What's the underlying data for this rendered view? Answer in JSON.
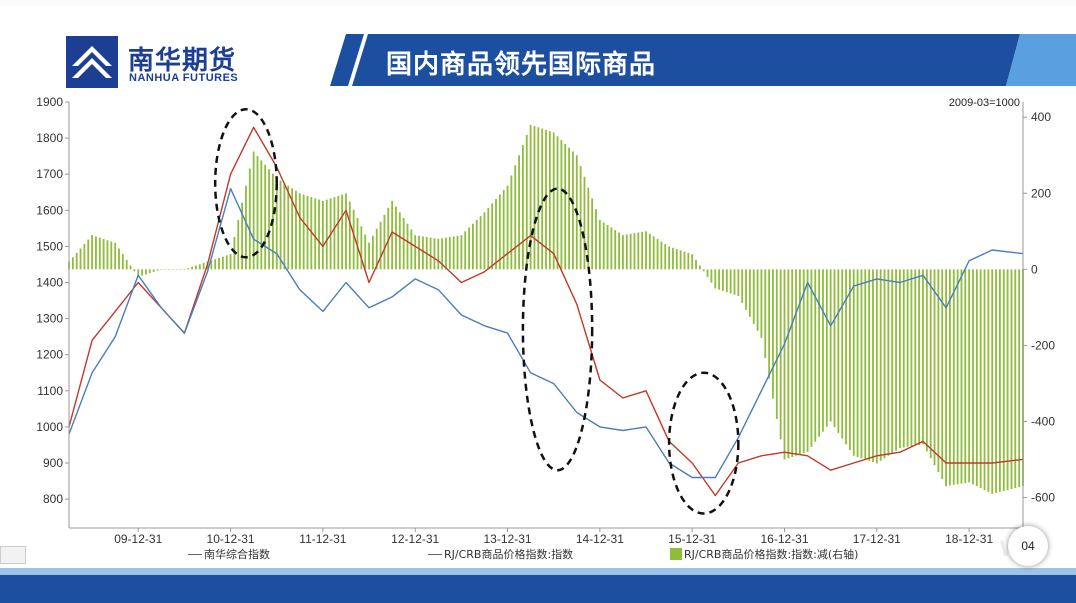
{
  "brand": {
    "name_cn": "南华期货",
    "name_en": "NANHUA FUTURES",
    "logo_color": "#1c3f94"
  },
  "slide": {
    "title": "国内商品领先国际商品",
    "page_number": "04",
    "banner_color": "#1c4fa0",
    "banner_accent": "#5aa0e0"
  },
  "chart_data": {
    "type": "line",
    "annotation": "2009-03=1000",
    "x_tick_labels": [
      "09-12-31",
      "10-12-31",
      "11-12-31",
      "12-12-31",
      "13-12-31",
      "14-12-31",
      "15-12-31",
      "16-12-31",
      "17-12-31",
      "18-12-31"
    ],
    "left_axis": {
      "ticks": [
        800,
        900,
        1000,
        1100,
        1200,
        1300,
        1400,
        1500,
        1600,
        1700,
        1800,
        1900
      ],
      "ylim": [
        720,
        1900
      ]
    },
    "right_axis": {
      "ticks": [
        400,
        200,
        0,
        -200,
        -400,
        -600
      ],
      "ylim": [
        -680,
        440
      ]
    },
    "x_range": [
      "2009-03",
      "2019-07"
    ],
    "legend": [
      {
        "label": "南华综合指数",
        "color": "#4a7ebb"
      },
      {
        "label": "RJ/CRB商品价格指数:指数",
        "color": "#c0392b"
      },
      {
        "label": "RJ/CRB商品价格指数:指数:减(右轴)",
        "color": "#8fbc3a"
      }
    ],
    "series": [
      {
        "name": "南华综合指数",
        "color": "#4a7ebb",
        "axis": "left",
        "x": [
          "2009-03",
          "2009-06",
          "2009-09",
          "2009-12",
          "2010-03",
          "2010-06",
          "2010-09",
          "2010-12",
          "2011-03",
          "2011-06",
          "2011-09",
          "2011-12",
          "2012-03",
          "2012-06",
          "2012-09",
          "2012-12",
          "2013-03",
          "2013-06",
          "2013-09",
          "2013-12",
          "2014-03",
          "2014-06",
          "2014-09",
          "2014-12",
          "2015-03",
          "2015-06",
          "2015-09",
          "2015-12",
          "2016-03",
          "2016-06",
          "2016-09",
          "2016-12",
          "2017-03",
          "2017-06",
          "2017-09",
          "2017-12",
          "2018-03",
          "2018-06",
          "2018-09",
          "2018-12",
          "2019-03",
          "2019-07"
        ],
        "values": [
          980,
          1150,
          1250,
          1420,
          1330,
          1260,
          1430,
          1660,
          1520,
          1480,
          1380,
          1320,
          1400,
          1330,
          1360,
          1410,
          1380,
          1310,
          1280,
          1260,
          1150,
          1120,
          1040,
          1000,
          990,
          1000,
          900,
          860,
          860,
          970,
          1100,
          1230,
          1400,
          1280,
          1390,
          1410,
          1400,
          1420,
          1330,
          1460,
          1490,
          1480
        ]
      },
      {
        "name": "RJ/CRB商品价格指数:指数",
        "color": "#c0392b",
        "axis": "left",
        "x": [
          "2009-03",
          "2009-06",
          "2009-09",
          "2009-12",
          "2010-03",
          "2010-06",
          "2010-09",
          "2010-12",
          "2011-03",
          "2011-06",
          "2011-09",
          "2011-12",
          "2012-03",
          "2012-06",
          "2012-09",
          "2012-12",
          "2013-03",
          "2013-06",
          "2013-09",
          "2013-12",
          "2014-03",
          "2014-06",
          "2014-09",
          "2014-12",
          "2015-03",
          "2015-06",
          "2015-09",
          "2015-12",
          "2016-03",
          "2016-06",
          "2016-09",
          "2016-12",
          "2017-03",
          "2017-06",
          "2017-09",
          "2017-12",
          "2018-03",
          "2018-06",
          "2018-09",
          "2018-12",
          "2019-03",
          "2019-07"
        ],
        "values": [
          1000,
          1240,
          1320,
          1400,
          1330,
          1260,
          1450,
          1700,
          1830,
          1720,
          1580,
          1500,
          1600,
          1400,
          1540,
          1500,
          1460,
          1400,
          1430,
          1480,
          1530,
          1480,
          1340,
          1130,
          1080,
          1100,
          960,
          900,
          810,
          900,
          920,
          930,
          920,
          880,
          900,
          920,
          930,
          960,
          900,
          900,
          900,
          910
        ]
      },
      {
        "name": "RJ/CRB商品价格指数:指数:减(右轴)",
        "color": "#8fbc3a",
        "axis": "right",
        "x": [
          "2009-03",
          "2009-06",
          "2009-09",
          "2009-12",
          "2010-03",
          "2010-06",
          "2010-09",
          "2010-12",
          "2011-03",
          "2011-06",
          "2011-09",
          "2011-12",
          "2012-03",
          "2012-06",
          "2012-09",
          "2012-12",
          "2013-03",
          "2013-06",
          "2013-09",
          "2013-12",
          "2014-03",
          "2014-06",
          "2014-09",
          "2014-12",
          "2015-03",
          "2015-06",
          "2015-09",
          "2015-12",
          "2016-03",
          "2016-06",
          "2016-09",
          "2016-12",
          "2017-03",
          "2017-06",
          "2017-09",
          "2017-12",
          "2018-03",
          "2018-06",
          "2018-09",
          "2018-12",
          "2019-03",
          "2019-07"
        ],
        "values": [
          20,
          90,
          70,
          -20,
          0,
          0,
          20,
          40,
          310,
          240,
          200,
          180,
          200,
          70,
          180,
          90,
          80,
          90,
          150,
          220,
          380,
          360,
          300,
          130,
          90,
          100,
          60,
          40,
          -50,
          -70,
          -180,
          -500,
          -480,
          -400,
          -490,
          -510,
          -470,
          -460,
          -570,
          -560,
          -590,
          -570
        ]
      }
    ]
  },
  "highlights": [
    {
      "from": "2010-10",
      "to": "2011-06",
      "ymin": 1470,
      "ymax": 1880
    },
    {
      "from": "2014-02",
      "to": "2014-11",
      "ymin": 880,
      "ymax": 1660
    },
    {
      "from": "2015-09",
      "to": "2016-06",
      "ymin": 760,
      "ymax": 1150
    }
  ]
}
